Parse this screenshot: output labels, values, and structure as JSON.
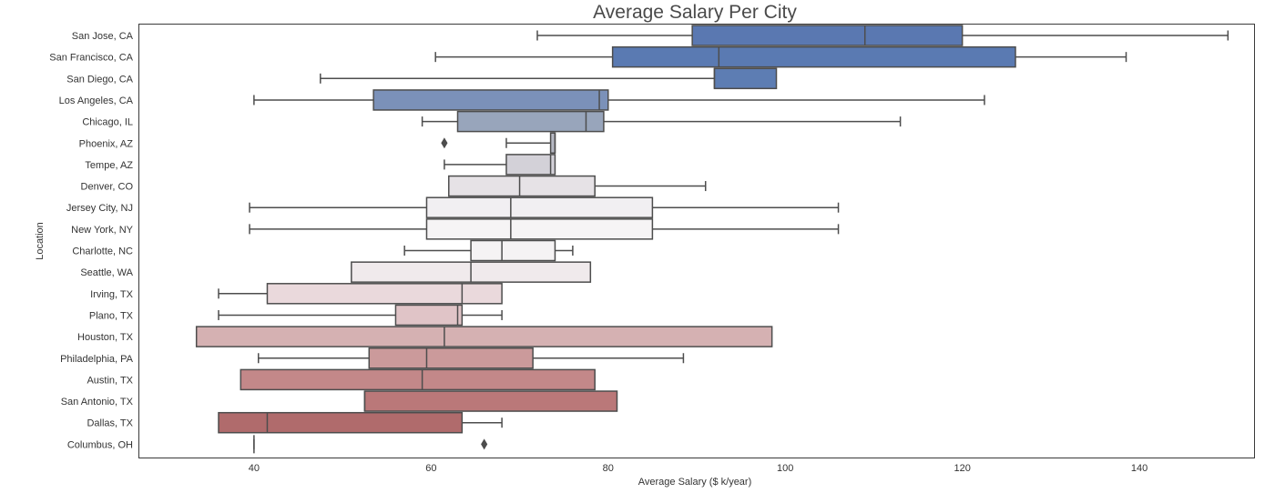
{
  "chart_data": {
    "type": "boxplot",
    "orientation": "horizontal",
    "title": "Average Salary Per City",
    "xlabel": "Average Salary ($ k/year)",
    "ylabel": "Location",
    "xlim": [
      27,
      153
    ],
    "xticks": [
      40,
      60,
      80,
      100,
      120,
      140
    ],
    "grid": false,
    "palette": "diverging blue-to-red",
    "categories": [
      {
        "name": "San Jose, CA",
        "whisker_low": 72,
        "q1": 89.5,
        "median": 109,
        "q3": 120,
        "whisker_high": 150,
        "outliers": [],
        "color": "#5a78b1"
      },
      {
        "name": "San Francisco, CA",
        "whisker_low": 60.5,
        "q1": 80.5,
        "median": 92.5,
        "q3": 126,
        "whisker_high": 138.5,
        "outliers": [],
        "color": "#5a7ab2"
      },
      {
        "name": "San Diego, CA",
        "whisker_low": 47.5,
        "q1": 92,
        "median": 92,
        "q3": 99,
        "whisker_high": 99,
        "outliers": [],
        "color": "#5d7db3"
      },
      {
        "name": "Los Angeles, CA",
        "whisker_low": 40,
        "q1": 53.5,
        "median": 79,
        "q3": 80,
        "whisker_high": 122.5,
        "outliers": [],
        "color": "#7b91b9"
      },
      {
        "name": "Chicago, IL",
        "whisker_low": 59,
        "q1": 63,
        "median": 77.5,
        "q3": 79.5,
        "whisker_high": 113,
        "outliers": [],
        "color": "#98a5bb"
      },
      {
        "name": "Phoenix, AZ",
        "whisker_low": 68.5,
        "q1": 73.5,
        "median": 74,
        "q3": 74,
        "whisker_high": 74,
        "outliers": [
          61.5
        ],
        "color": "#b7b9c4"
      },
      {
        "name": "Tempe, AZ",
        "whisker_low": 61.5,
        "q1": 68.5,
        "median": 73.5,
        "q3": 74,
        "whisker_high": 74,
        "outliers": [],
        "color": "#d3d1d8"
      },
      {
        "name": "Denver, CO",
        "whisker_low": 62,
        "q1": 62,
        "median": 70,
        "q3": 78.5,
        "whisker_high": 91,
        "outliers": [],
        "color": "#e6e2e6"
      },
      {
        "name": "Jersey City, NJ",
        "whisker_low": 39.5,
        "q1": 59.5,
        "median": 69,
        "q3": 85,
        "whisker_high": 106,
        "outliers": [],
        "color": "#f1eff2"
      },
      {
        "name": "New York, NY",
        "whisker_low": 39.5,
        "q1": 59.5,
        "median": 69,
        "q3": 85,
        "whisker_high": 106,
        "outliers": [],
        "color": "#f6f4f5"
      },
      {
        "name": "Charlotte, NC",
        "whisker_low": 57,
        "q1": 64.5,
        "median": 68,
        "q3": 74,
        "whisker_high": 76,
        "outliers": [],
        "color": "#f5f3f4"
      },
      {
        "name": "Seattle, WA",
        "whisker_low": 51,
        "q1": 51,
        "median": 64.5,
        "q3": 78,
        "whisker_high": 78,
        "outliers": [],
        "color": "#f0eaec"
      },
      {
        "name": "Irving, TX",
        "whisker_low": 36,
        "q1": 41.5,
        "median": 63.5,
        "q3": 68,
        "whisker_high": 68,
        "outliers": [],
        "color": "#ead9dc"
      },
      {
        "name": "Plano, TX",
        "whisker_low": 36,
        "q1": 56,
        "median": 63,
        "q3": 63.5,
        "whisker_high": 68,
        "outliers": [],
        "color": "#e0c4c7"
      },
      {
        "name": "Houston, TX",
        "whisker_low": 33.5,
        "q1": 33.5,
        "median": 61.5,
        "q3": 98.5,
        "whisker_high": 98.5,
        "outliers": [],
        "color": "#d5b1b2"
      },
      {
        "name": "Philadelphia, PA",
        "whisker_low": 40.5,
        "q1": 53,
        "median": 59.5,
        "q3": 71.5,
        "whisker_high": 88.5,
        "outliers": [],
        "color": "#cb9a9b"
      },
      {
        "name": "Austin, TX",
        "whisker_low": 38.5,
        "q1": 38.5,
        "median": 59,
        "q3": 78.5,
        "whisker_high": 78.5,
        "outliers": [],
        "color": "#c38889"
      },
      {
        "name": "San Antonio, TX",
        "whisker_low": 52.5,
        "q1": 52.5,
        "median": 52.5,
        "q3": 81,
        "whisker_high": 81,
        "outliers": [],
        "color": "#ba7879"
      },
      {
        "name": "Dallas, TX",
        "whisker_low": 36,
        "q1": 36,
        "median": 41.5,
        "q3": 63.5,
        "whisker_high": 68,
        "outliers": [],
        "color": "#b06b6c"
      },
      {
        "name": "Columbus, OH",
        "whisker_low": 40,
        "q1": 40,
        "median": 40,
        "q3": 40,
        "whisker_high": 40,
        "outliers": [
          66
        ],
        "color": "#a85d5f"
      }
    ]
  }
}
